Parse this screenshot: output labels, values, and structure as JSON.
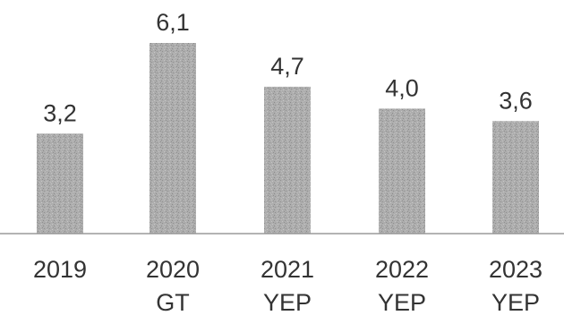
{
  "chart_data": {
    "type": "bar",
    "categories": [
      [
        "2019"
      ],
      [
        "2020",
        "GT"
      ],
      [
        "2021",
        "YEP"
      ],
      [
        "2022",
        "YEP"
      ],
      [
        "2023",
        "YEP"
      ]
    ],
    "values": [
      3.2,
      6.1,
      4.7,
      4.0,
      3.6
    ],
    "value_labels": [
      "3,2",
      "6,1",
      "4,7",
      "4,0",
      "3,6"
    ],
    "title": "",
    "xlabel": "",
    "ylabel": "",
    "ylim": [
      0,
      6.1
    ],
    "grid": false,
    "legend": "none",
    "colors": {
      "bar": "#a9a9a9",
      "bar_texture": "#8d8d8d",
      "baseline": "#9a9a9a",
      "text": "#333333"
    }
  }
}
